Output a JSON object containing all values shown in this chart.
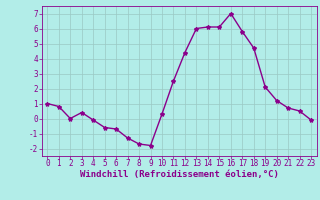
{
  "x": [
    0,
    1,
    2,
    3,
    4,
    5,
    6,
    7,
    8,
    9,
    10,
    11,
    12,
    13,
    14,
    15,
    16,
    17,
    18,
    19,
    20,
    21,
    22,
    23
  ],
  "y": [
    1.0,
    0.8,
    0.0,
    0.4,
    -0.1,
    -0.6,
    -0.7,
    -1.3,
    -1.7,
    -1.8,
    0.3,
    2.5,
    4.4,
    6.0,
    6.1,
    6.1,
    7.0,
    5.8,
    4.7,
    2.1,
    1.2,
    0.7,
    0.5,
    -0.1
  ],
  "line_color": "#8B008B",
  "marker": "*",
  "bg_color": "#b2ede8",
  "grid_color": "#9ac9c4",
  "xlabel": "Windchill (Refroidissement éolien,°C)",
  "xlim": [
    -0.5,
    23.5
  ],
  "ylim": [
    -2.5,
    7.5
  ],
  "yticks": [
    -2,
    -1,
    0,
    1,
    2,
    3,
    4,
    5,
    6,
    7
  ],
  "xticks": [
    0,
    1,
    2,
    3,
    4,
    5,
    6,
    7,
    8,
    9,
    10,
    11,
    12,
    13,
    14,
    15,
    16,
    17,
    18,
    19,
    20,
    21,
    22,
    23
  ],
  "label_color": "#8B008B",
  "tick_color": "#8B008B",
  "spine_color": "#8B008B",
  "tick_fontsize": 5.5,
  "xlabel_fontsize": 6.5,
  "marker_size": 3,
  "line_width": 1.0
}
